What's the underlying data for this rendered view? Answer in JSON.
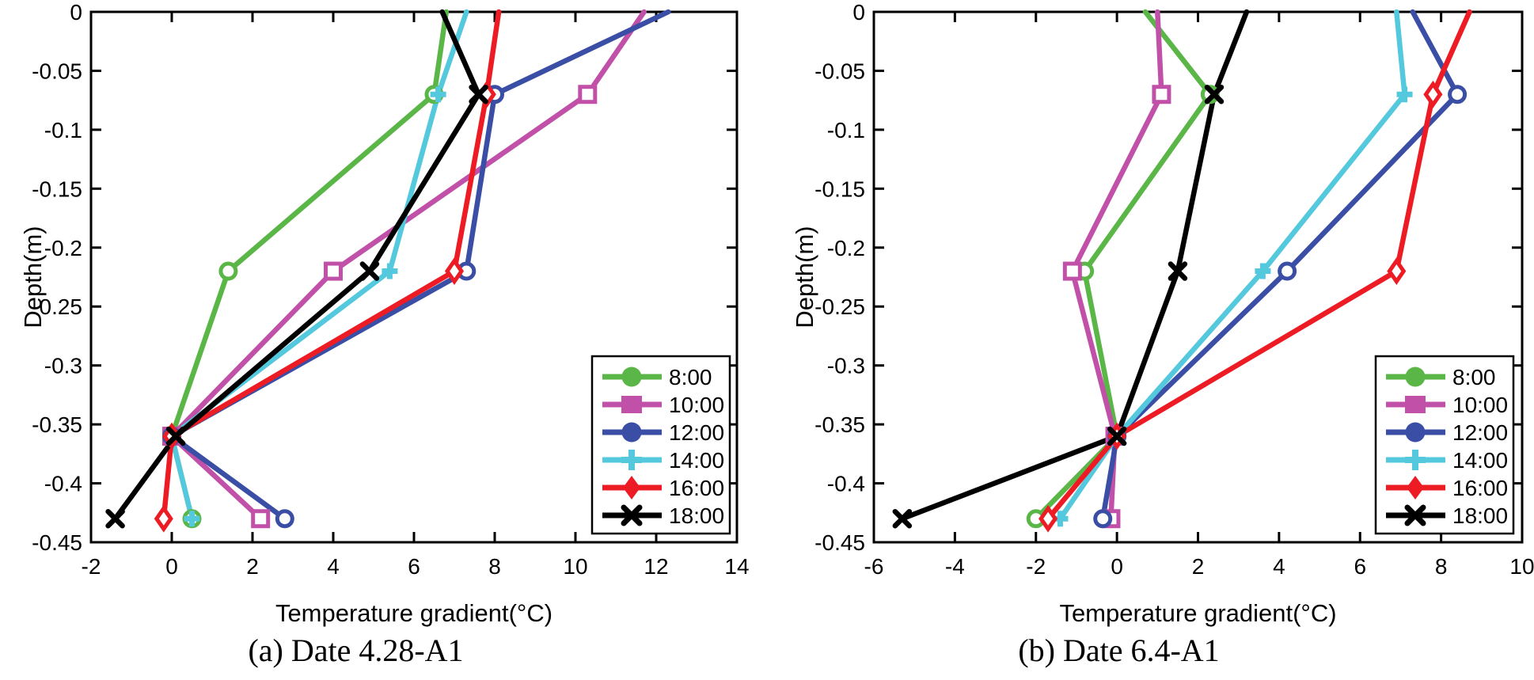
{
  "figure_title": "",
  "chart_data": [
    {
      "type": "line",
      "caption": "(a) Date 4.28-A1",
      "xlabel": "Temperature gradient(°C)",
      "ylabel": "Depth(m)",
      "xlim": [
        -2,
        14
      ],
      "xticks": [
        -2,
        0,
        2,
        4,
        6,
        8,
        10,
        12,
        14
      ],
      "ylim": [
        -0.45,
        0
      ],
      "yticks": [
        0,
        -0.05,
        -0.1,
        -0.15,
        -0.2,
        -0.25,
        -0.3,
        -0.35,
        -0.4,
        -0.45
      ],
      "ytick_labels": [
        "0",
        "-0.05",
        "-0.1",
        "-0.15",
        "-0.2",
        "-0.25",
        "-0.3",
        "-0.35",
        "-0.4",
        "-0.45"
      ],
      "grid": false,
      "legend_position": "inside lower right",
      "depths": [
        0,
        -0.07,
        -0.22,
        -0.36,
        -0.43
      ],
      "series": [
        {
          "name": "8:00",
          "color": "#5bb648",
          "marker": "circle",
          "values": [
            6.8,
            6.5,
            1.4,
            0.0,
            0.5
          ]
        },
        {
          "name": "10:00",
          "color": "#c150a8",
          "marker": "square",
          "values": [
            11.7,
            10.3,
            4.0,
            0.0,
            2.2
          ]
        },
        {
          "name": "12:00",
          "color": "#3a4ea5",
          "marker": "circle",
          "values": [
            12.3,
            8.0,
            7.3,
            0.0,
            2.8
          ]
        },
        {
          "name": "14:00",
          "color": "#54c8dc",
          "marker": "plus",
          "values": [
            7.3,
            6.6,
            5.4,
            0.0,
            0.5
          ]
        },
        {
          "name": "16:00",
          "color": "#ed1c24",
          "marker": "diamond",
          "values": [
            8.1,
            7.8,
            7.0,
            0.0,
            -0.2
          ]
        },
        {
          "name": "18:00",
          "color": "#000000",
          "marker": "x",
          "values": [
            6.7,
            7.6,
            4.9,
            0.1,
            -1.4
          ]
        }
      ]
    },
    {
      "type": "line",
      "caption": "(b) Date 6.4-A1",
      "xlabel": "Temperature gradient(°C)",
      "ylabel": "Depth(m)",
      "xlim": [
        -6,
        10
      ],
      "xticks": [
        -6,
        -4,
        -2,
        0,
        2,
        4,
        6,
        8,
        10
      ],
      "ylim": [
        -0.45,
        0
      ],
      "yticks": [
        0,
        -0.05,
        -0.1,
        -0.15,
        -0.2,
        -0.25,
        -0.3,
        -0.35,
        -0.4,
        -0.45
      ],
      "ytick_labels": [
        "0",
        "-0.05",
        "-0.1",
        "-0.15",
        "-0.2",
        "-0.25",
        "-0.3",
        "-0.35",
        "-0.4",
        "-0.45"
      ],
      "grid": false,
      "legend_position": "inside lower right",
      "depths": [
        0,
        -0.07,
        -0.22,
        -0.36,
        -0.43
      ],
      "series": [
        {
          "name": "8:00",
          "color": "#5bb648",
          "marker": "circle",
          "values": [
            0.7,
            2.3,
            -0.8,
            0.0,
            -2.0
          ]
        },
        {
          "name": "10:00",
          "color": "#c150a8",
          "marker": "square",
          "values": [
            1.0,
            1.1,
            -1.1,
            -0.05,
            -0.15
          ]
        },
        {
          "name": "12:00",
          "color": "#3a4ea5",
          "marker": "circle",
          "values": [
            7.3,
            8.4,
            4.2,
            0.0,
            -0.35
          ]
        },
        {
          "name": "14:00",
          "color": "#54c8dc",
          "marker": "plus",
          "values": [
            6.9,
            7.1,
            3.6,
            0.0,
            -1.4
          ]
        },
        {
          "name": "16:00",
          "color": "#ed1c24",
          "marker": "diamond",
          "values": [
            8.7,
            7.8,
            6.9,
            0.0,
            -1.7
          ]
        },
        {
          "name": "18:00",
          "color": "#000000",
          "marker": "x",
          "values": [
            3.2,
            2.4,
            1.5,
            0.0,
            -5.3
          ]
        }
      ]
    }
  ]
}
